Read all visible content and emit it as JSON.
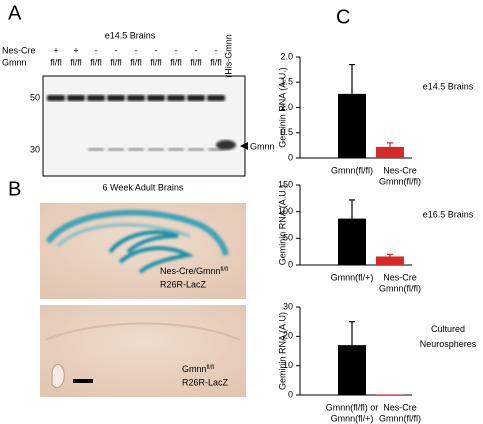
{
  "panel_a": {
    "label": "A",
    "title": "e14.5 Brains",
    "row_labels": [
      "Nes-Cre",
      "Gmnn"
    ],
    "nes_cre": [
      "+",
      "+",
      "-",
      "-",
      "-",
      "-",
      "-",
      "-",
      "-"
    ],
    "gmnn": [
      "fl/fl",
      "fl/fl",
      "fl/fl",
      "fl/fl",
      "fl/fl",
      "fl/fl",
      "fl/fl",
      "fl/fl",
      "fl/fl"
    ],
    "control_lane": "rHis-Gmnn",
    "markers": [
      "50",
      "30"
    ],
    "band_label": "Gmnn"
  },
  "panel_b": {
    "label": "B",
    "title": "6 Week Adult Brains",
    "image_1": {
      "line_1": "Nes-Cre/Gmnn",
      "sup": "fl/fl",
      "line_2": "R26R-LacZ"
    },
    "image_2": {
      "line_1": "Gmnn",
      "sup": "fl/fl",
      "line_2": "R26R-LacZ"
    }
  },
  "panel_c": {
    "label": "C"
  },
  "chart_data": [
    {
      "type": "bar",
      "ylabel": "Geminin RNA (A.U.)",
      "annotation": [
        "e14.5 Brains"
      ],
      "categories": [
        [
          "Gmnn(fl/fl)"
        ],
        [
          "Nes-Cre",
          "Gmnn(fl/fl)"
        ]
      ],
      "values": [
        1.27,
        0.22
      ],
      "errors": [
        0.58,
        0.08
      ],
      "colors": [
        "#000000",
        "#d42a2a"
      ],
      "ylim": [
        0,
        2
      ],
      "yticks": [
        0,
        0.5,
        {
          "value": 1,
          "label": "1.0"
        },
        1.5,
        {
          "value": 2,
          "label": "2.0"
        }
      ]
    },
    {
      "type": "bar",
      "ylabel": "Geminin RNA (A.U.)",
      "annotation": [
        "e16.5 Brains"
      ],
      "categories": [
        [
          "Gmnn(fl/+)"
        ],
        [
          "Nes-Cre",
          "Gmnn(fl/fl)"
        ]
      ],
      "values": [
        87,
        16
      ],
      "errors": [
        35,
        4
      ],
      "colors": [
        "#000000",
        "#d42a2a"
      ],
      "ylim": [
        0,
        150
      ],
      "yticks": [
        0,
        50,
        100,
        150
      ]
    },
    {
      "type": "bar",
      "ylabel": "Geminin RNA (A.U)",
      "annotation": [
        "Cultured",
        "Neurospheres"
      ],
      "categories": [
        [
          "Gmnn(fl/fl) or",
          "Gmnn(fl/+)"
        ],
        [
          "Nes-Cre",
          "Gmnn(fl/fl)"
        ]
      ],
      "values": [
        17,
        0.2
      ],
      "errors": [
        8,
        0
      ],
      "colors": [
        "#000000",
        "#d42a2a"
      ],
      "ylim": [
        0,
        30
      ],
      "yticks": [
        0,
        10,
        20,
        30
      ]
    }
  ]
}
